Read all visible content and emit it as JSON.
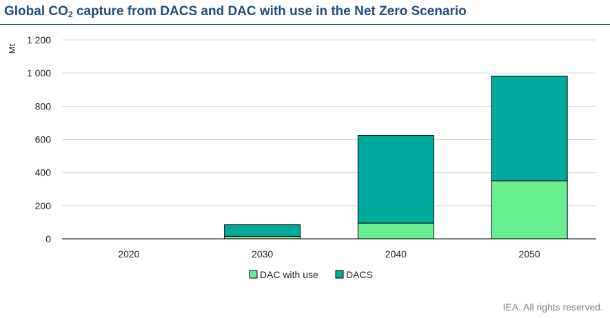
{
  "header": {
    "title_prefix": "Global CO",
    "title_sub": "2",
    "title_suffix": " capture from DACS and DAC with use in the Net Zero Scenario"
  },
  "footer": {
    "credit": "IEA. All rights reserved."
  },
  "colors": {
    "title": "#1f4e79",
    "dac_with_use": "#66ee8f",
    "dacs": "#00a99d",
    "grid": "#d9d9d9",
    "axis": "#000000"
  },
  "chart_data": {
    "type": "bar",
    "stacked": true,
    "title": "Global CO2 capture from DACS and DAC with use in the Net Zero Scenario",
    "ylabel": "Mt",
    "xlabel": "",
    "categories": [
      "2020",
      "2030",
      "2040",
      "2050"
    ],
    "series": [
      {
        "name": "DAC with use",
        "values": [
          0,
          15,
          95,
          350
        ]
      },
      {
        "name": "DACS",
        "values": [
          0,
          70,
          530,
          632
        ]
      }
    ],
    "ylim": [
      0,
      1200
    ],
    "yticks": [
      0,
      200,
      400,
      600,
      800,
      1000,
      1200
    ],
    "ytick_labels": [
      "0",
      "200",
      "400",
      "600",
      "800",
      "1 000",
      "1 200"
    ],
    "grid": true,
    "legend": "bottom"
  }
}
